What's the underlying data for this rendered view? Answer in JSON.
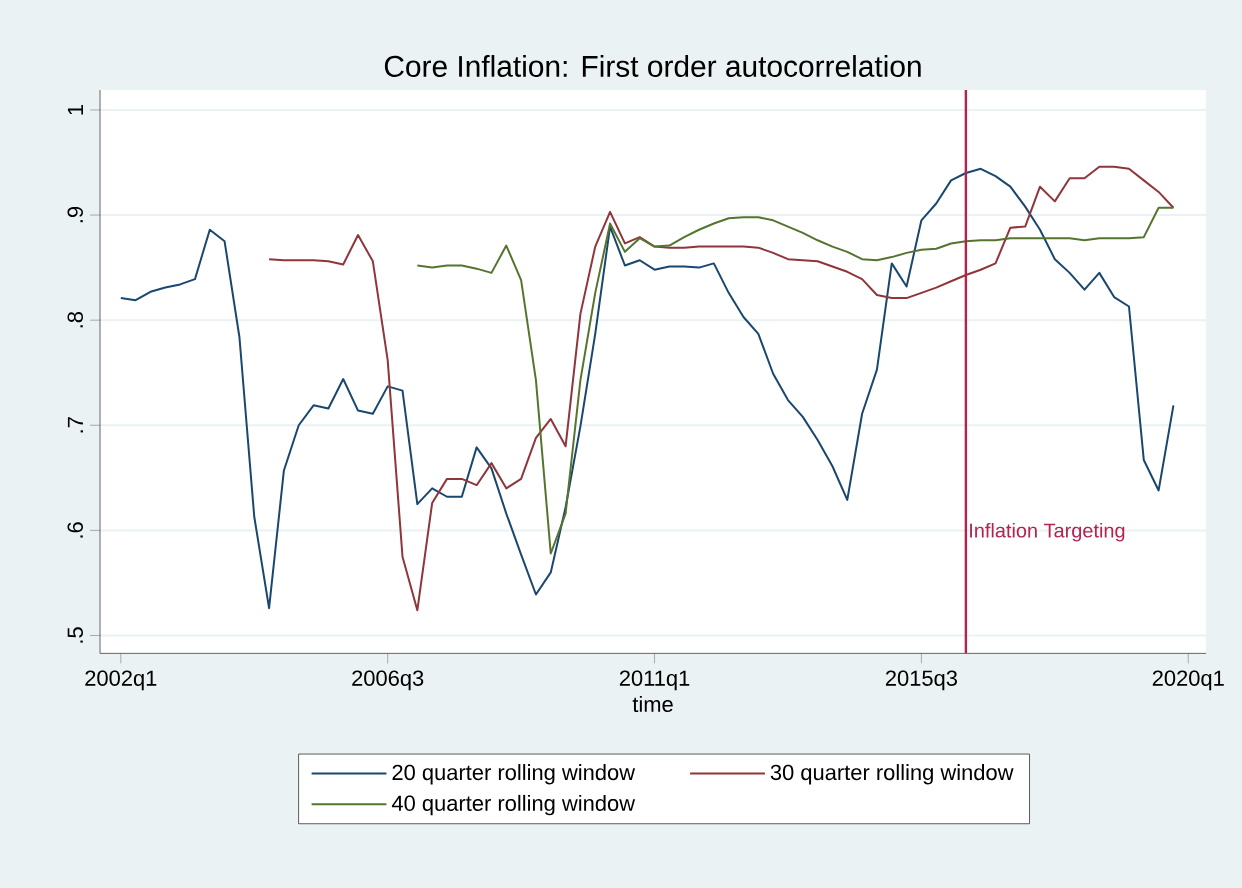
{
  "chart_data": {
    "type": "line",
    "title": "Core Inflation: First order autocorrelation",
    "xlabel": "time",
    "xlim": [
      "2001-08-25",
      "2020-04-19"
    ],
    "ylim": [
      0.483,
      1.019
    ],
    "xticks": [
      {
        "value": "2002-01",
        "label": "2002q1"
      },
      {
        "value": "2006-07",
        "label": "2006q3"
      },
      {
        "value": "2011-01",
        "label": "2011q1"
      },
      {
        "value": "2015-07",
        "label": "2015q3"
      },
      {
        "value": "2020-01",
        "label": "2020q1"
      }
    ],
    "yticks": [
      {
        "value": 0.5,
        "label": ".5"
      },
      {
        "value": 0.6,
        "label": ".6"
      },
      {
        "value": 0.7,
        "label": ".7"
      },
      {
        "value": 0.8,
        "label": ".8"
      },
      {
        "value": 0.9,
        "label": ".9"
      },
      {
        "value": 1,
        "label": "1"
      }
    ],
    "grid": "y",
    "legend": "bottom",
    "marker": "none",
    "line_style": "solid",
    "ref_lines": [
      {
        "axis": "x",
        "value": "2016-04",
        "label": "Inflation Targeting",
        "color": "#b0244f"
      }
    ],
    "series": [
      {
        "name": "20 quarter rolling window",
        "color": "#1a476f",
        "x": [
          "2002-01",
          "2002-04",
          "2002-07",
          "2002-10",
          "2003-01",
          "2003-04",
          "2003-07",
          "2003-10",
          "2004-01",
          "2004-04",
          "2004-07",
          "2004-10",
          "2005-01",
          "2005-04",
          "2005-07",
          "2005-10",
          "2006-01",
          "2006-04",
          "2006-07",
          "2006-10",
          "2007-01",
          "2007-04",
          "2007-07",
          "2007-10",
          "2008-01",
          "2008-04",
          "2008-07",
          "2008-10",
          "2009-01",
          "2009-04",
          "2009-07",
          "2009-10",
          "2010-01",
          "2010-04",
          "2010-07",
          "2010-10",
          "2011-01",
          "2011-04",
          "2011-07",
          "2011-10",
          "2012-01",
          "2012-04",
          "2012-07",
          "2012-10",
          "2013-01",
          "2013-04",
          "2013-07",
          "2013-10",
          "2014-01",
          "2014-04",
          "2014-07",
          "2014-10",
          "2015-01",
          "2015-04",
          "2015-07",
          "2015-10",
          "2016-01",
          "2016-04",
          "2016-07",
          "2016-10",
          "2017-01",
          "2017-04",
          "2017-07",
          "2017-10",
          "2018-01",
          "2018-04",
          "2018-07",
          "2018-10",
          "2019-01",
          "2019-04",
          "2019-07",
          "2019-10"
        ],
        "values": [
          0.821,
          0.819,
          0.827,
          0.831,
          0.834,
          0.839,
          0.886,
          0.875,
          0.784,
          0.613,
          0.526,
          0.657,
          0.7,
          0.719,
          0.716,
          0.744,
          0.714,
          0.711,
          0.737,
          0.733,
          0.625,
          0.64,
          0.632,
          0.632,
          0.679,
          0.659,
          0.616,
          0.577,
          0.539,
          0.56,
          0.622,
          0.699,
          0.787,
          0.889,
          0.852,
          0.857,
          0.848,
          0.851,
          0.851,
          0.85,
          0.854,
          0.826,
          0.803,
          0.787,
          0.749,
          0.724,
          0.708,
          0.686,
          0.661,
          0.629,
          0.711,
          0.753,
          0.854,
          0.832,
          0.895,
          0.911,
          0.933,
          0.94,
          0.944,
          0.937,
          0.927,
          0.908,
          0.886,
          0.858,
          0.845,
          0.829,
          0.845,
          0.822,
          0.813,
          0.667,
          0.638,
          0.719
        ]
      },
      {
        "name": "30 quarter rolling window",
        "color": "#90353b",
        "x": [
          "2004-07",
          "2004-10",
          "2005-01",
          "2005-04",
          "2005-07",
          "2005-10",
          "2006-01",
          "2006-04",
          "2006-07",
          "2006-10",
          "2007-01",
          "2007-04",
          "2007-07",
          "2007-10",
          "2008-01",
          "2008-04",
          "2008-07",
          "2008-10",
          "2009-01",
          "2009-04",
          "2009-07",
          "2009-10",
          "2010-01",
          "2010-04",
          "2010-07",
          "2010-10",
          "2011-01",
          "2011-04",
          "2011-07",
          "2011-10",
          "2012-01",
          "2012-04",
          "2012-07",
          "2012-10",
          "2013-01",
          "2013-04",
          "2013-07",
          "2013-10",
          "2014-01",
          "2014-04",
          "2014-07",
          "2014-10",
          "2015-01",
          "2015-04",
          "2015-07",
          "2015-10",
          "2016-01",
          "2016-04",
          "2016-07",
          "2016-10",
          "2017-01",
          "2017-04",
          "2017-07",
          "2017-10",
          "2018-01",
          "2018-04",
          "2018-07",
          "2018-10",
          "2019-01",
          "2019-04",
          "2019-07",
          "2019-10"
        ],
        "values": [
          0.858,
          0.857,
          0.857,
          0.857,
          0.856,
          0.853,
          0.881,
          0.856,
          0.762,
          0.575,
          0.524,
          0.626,
          0.649,
          0.649,
          0.643,
          0.664,
          0.64,
          0.649,
          0.688,
          0.706,
          0.68,
          0.806,
          0.87,
          0.903,
          0.873,
          0.879,
          0.87,
          0.869,
          0.869,
          0.87,
          0.87,
          0.87,
          0.87,
          0.869,
          0.864,
          0.858,
          0.857,
          0.856,
          0.851,
          0.846,
          0.839,
          0.824,
          0.821,
          0.821,
          0.826,
          0.831,
          0.837,
          0.843,
          0.848,
          0.854,
          0.888,
          0.889,
          0.927,
          0.913,
          0.935,
          0.935,
          0.946,
          0.946,
          0.944,
          0.933,
          0.922,
          0.907
        ]
      },
      {
        "name": "40 quarter rolling window",
        "color": "#55752f",
        "x": [
          "2007-01",
          "2007-04",
          "2007-07",
          "2007-10",
          "2008-01",
          "2008-04",
          "2008-07",
          "2008-10",
          "2009-01",
          "2009-04",
          "2009-07",
          "2009-10",
          "2010-01",
          "2010-04",
          "2010-07",
          "2010-10",
          "2011-01",
          "2011-04",
          "2011-07",
          "2011-10",
          "2012-01",
          "2012-04",
          "2012-07",
          "2012-10",
          "2013-01",
          "2013-04",
          "2013-07",
          "2013-10",
          "2014-01",
          "2014-04",
          "2014-07",
          "2014-10",
          "2015-01",
          "2015-04",
          "2015-07",
          "2015-10",
          "2016-01",
          "2016-04",
          "2016-07",
          "2016-10",
          "2017-01",
          "2017-04",
          "2017-07",
          "2017-10",
          "2018-01",
          "2018-04",
          "2018-07",
          "2018-10",
          "2019-01",
          "2019-04",
          "2019-07",
          "2019-10"
        ],
        "values": [
          0.852,
          0.85,
          0.852,
          0.852,
          0.849,
          0.845,
          0.871,
          0.838,
          0.743,
          0.578,
          0.616,
          0.743,
          0.826,
          0.892,
          0.865,
          0.878,
          0.87,
          0.871,
          0.879,
          0.886,
          0.892,
          0.897,
          0.898,
          0.898,
          0.895,
          0.889,
          0.883,
          0.876,
          0.87,
          0.865,
          0.858,
          0.857,
          0.86,
          0.864,
          0.867,
          0.868,
          0.873,
          0.875,
          0.876,
          0.876,
          0.878,
          0.878,
          0.878,
          0.878,
          0.878,
          0.876,
          0.878,
          0.878,
          0.878,
          0.879,
          0.907,
          0.907
        ]
      }
    ]
  }
}
